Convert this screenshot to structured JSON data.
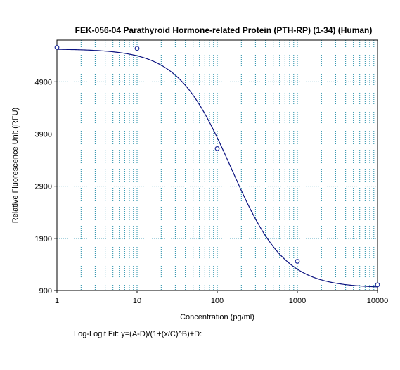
{
  "chart_data": {
    "type": "scatter",
    "title": "FEK-056-04 Parathyroid Hormone-related Protein (PTH-RP) (1-34) (Human)",
    "xlabel": "Concentration (pg/ml)",
    "ylabel": "Relative Fluorescence Unit (RFU)",
    "x_scale": "log",
    "xlim": [
      1,
      10000
    ],
    "ylim": [
      900,
      5700
    ],
    "x_ticks": [
      1,
      10,
      100,
      1000,
      10000
    ],
    "x_tick_labels": [
      "1",
      "10",
      "100",
      "1000",
      "10000"
    ],
    "y_ticks": [
      900,
      1900,
      2900,
      3900,
      4900
    ],
    "y_tick_labels": [
      "900",
      "1900",
      "2900",
      "3900",
      "4900"
    ],
    "grid": true,
    "series": [
      {
        "kind": "points",
        "x": [
          1,
          10,
          100,
          1000,
          10000
        ],
        "y": [
          5560,
          5540,
          3620,
          1460,
          1010
        ]
      },
      {
        "kind": "fit",
        "model": "log-logit",
        "params": {
          "A": 5530,
          "B": 1.3,
          "C": 150,
          "D": 950
        }
      }
    ],
    "point_color": "#1f2f9c",
    "curve_color": "#0b1280",
    "grid_color": "#1b8aa6",
    "annotation": "Log-Logit Fit: y=(A-D)/(1+(x/C)^B)+D:"
  }
}
